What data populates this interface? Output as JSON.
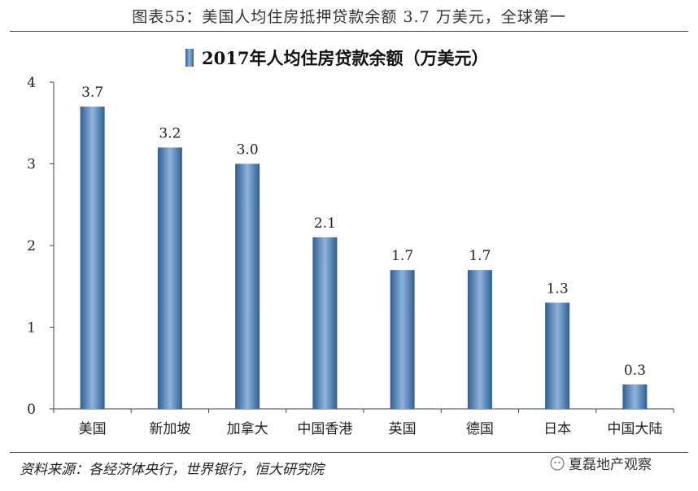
{
  "figure_title": "图表55：美国人均住房抵押贷款余额 3.7 万美元，全球第一",
  "source_note": "资料来源：各经济体央行，世界银行，恒大研究院",
  "watermark": "夏磊地产观察",
  "colors": {
    "bar_dark": "#2e5f93",
    "bar_light": "#8fb3dc",
    "axis": "#444444"
  },
  "chart_data": {
    "type": "bar",
    "title": "2017年人均住房贷款余额（万美元）",
    "legend_position": "top",
    "categories": [
      "美国",
      "新加坡",
      "加拿大",
      "中国香港",
      "英国",
      "德国",
      "日本",
      "中国大陆"
    ],
    "values": [
      3.7,
      3.2,
      3.0,
      2.1,
      1.7,
      1.7,
      1.3,
      0.3
    ],
    "data_labels": [
      "3.7",
      "3.2",
      "3.0",
      "2.1",
      "1.7",
      "1.7",
      "1.3",
      "0.3"
    ],
    "ylim": [
      0,
      4
    ],
    "yticks": [
      0,
      1,
      2,
      3,
      4
    ],
    "xlabel": "",
    "ylabel": "",
    "grid": false
  }
}
